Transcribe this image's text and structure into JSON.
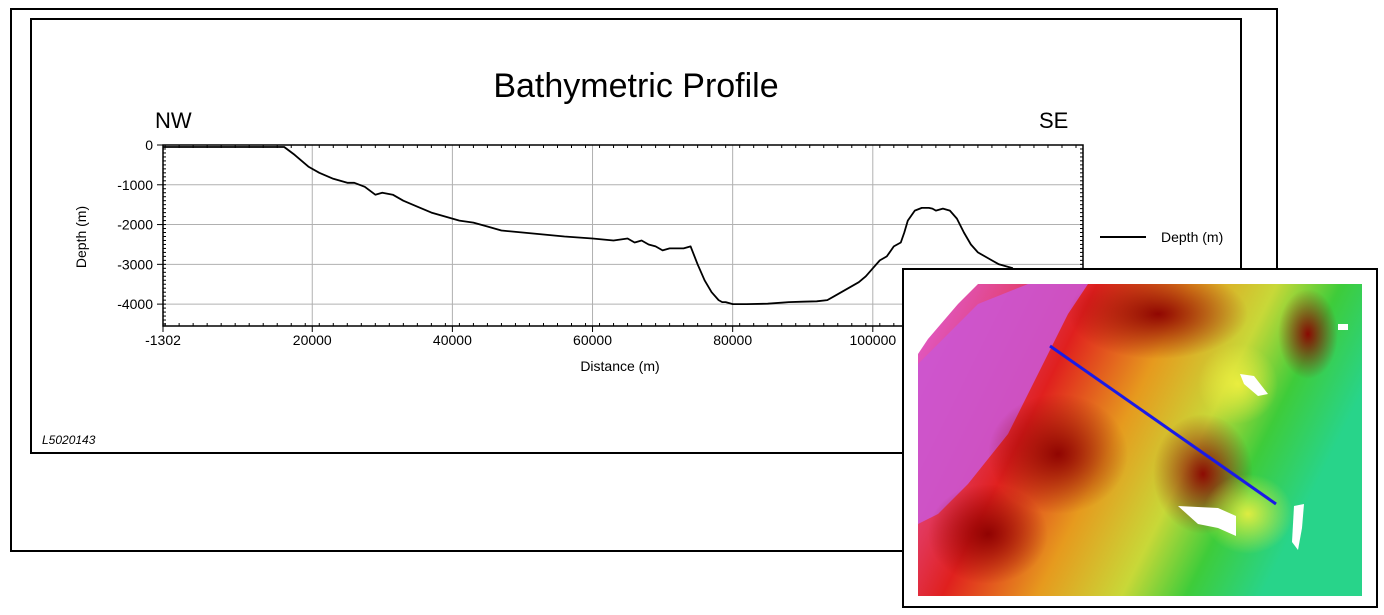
{
  "chart_data": {
    "type": "line",
    "title": "Bathymetric Profile",
    "direction_start": "NW",
    "direction_end": "SE",
    "xlabel": "Distance (m)",
    "ylabel": "Depth (m)",
    "footer_id": "L5020143",
    "xlim": [
      -1302,
      130000
    ],
    "ylim": [
      -4550,
      0
    ],
    "x_ticks": [
      -1302,
      20000,
      40000,
      60000,
      80000,
      100000
    ],
    "x_tick_labels": [
      "-1302",
      "20000",
      "40000",
      "60000",
      "80000",
      "100000"
    ],
    "y_ticks": [
      0,
      -1000,
      -2000,
      -3000,
      -4000
    ],
    "y_tick_labels": [
      "0",
      "-1000",
      "-2000",
      "-3000",
      "-4000"
    ],
    "grid": true,
    "legend_position": "right",
    "series": [
      {
        "name": "Depth (m)",
        "color": "#000000",
        "x": [
          -1302,
          16000,
          17500,
          19500,
          21000,
          23000,
          25000,
          26000,
          27500,
          29000,
          30000,
          31500,
          33000,
          35000,
          37000,
          39000,
          41000,
          43000,
          45000,
          47000,
          50000,
          53000,
          56000,
          60000,
          63000,
          65000,
          66000,
          67000,
          68000,
          69000,
          70000,
          71000,
          72000,
          73000,
          74000,
          75000,
          76000,
          77000,
          78000,
          78500,
          79000,
          80000,
          82000,
          85000,
          88000,
          90000,
          92000,
          93500,
          94500,
          96000,
          98000,
          99000,
          100000,
          101000,
          102000,
          103000,
          104000,
          104500,
          105000,
          106000,
          107000,
          108000,
          108500,
          109000,
          110000,
          111000,
          112000,
          113000,
          114000,
          115000,
          116000,
          117000,
          118000,
          119000,
          120000
        ],
        "y": [
          -50,
          -50,
          -250,
          -550,
          -700,
          -850,
          -950,
          -950,
          -1050,
          -1250,
          -1200,
          -1250,
          -1400,
          -1550,
          -1700,
          -1800,
          -1900,
          -1950,
          -2050,
          -2150,
          -2200,
          -2250,
          -2300,
          -2350,
          -2400,
          -2350,
          -2450,
          -2400,
          -2500,
          -2550,
          -2650,
          -2600,
          -2600,
          -2600,
          -2550,
          -3000,
          -3400,
          -3700,
          -3900,
          -3950,
          -3950,
          -4000,
          -4000,
          -3990,
          -3950,
          -3940,
          -3930,
          -3900,
          -3800,
          -3650,
          -3450,
          -3300,
          -3100,
          -2900,
          -2800,
          -2550,
          -2450,
          -2200,
          -1900,
          -1650,
          -1580,
          -1580,
          -1600,
          -1650,
          -1600,
          -1650,
          -1850,
          -2200,
          -2500,
          -2700,
          -2800,
          -2900,
          -3000,
          -3050,
          -3100
        ]
      }
    ]
  },
  "inset_map": {
    "name": "Bathymetry map inset",
    "track_line_color": "#1a1ae6"
  }
}
